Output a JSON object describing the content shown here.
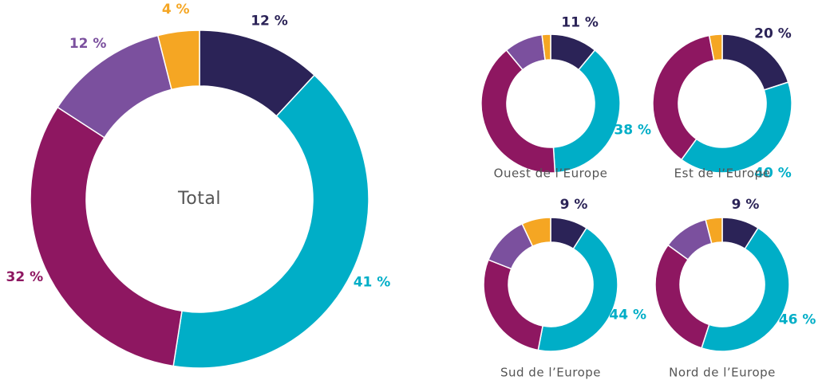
{
  "chart_data": [
    {
      "type": "donut",
      "title": "Total",
      "values": [
        12,
        41,
        32,
        12,
        4
      ],
      "value_labels": [
        "12 %",
        "41 %",
        "32 %",
        "12 %",
        "4 %"
      ],
      "colors": [
        "#2b2357",
        "#00aec7",
        "#8e1761",
        "#7b509e",
        "#f5a623"
      ]
    },
    {
      "type": "donut",
      "title": "Ouest de l’Europe",
      "values": [
        11,
        38,
        40,
        9,
        2
      ],
      "value_labels": [
        "11 %",
        "38 %",
        null,
        null,
        null
      ],
      "colors": [
        "#2b2357",
        "#00aec7",
        "#8e1761",
        "#7b509e",
        "#f5a623"
      ]
    },
    {
      "type": "donut",
      "title": "Est de l’Europe",
      "values": [
        20,
        40,
        37,
        0,
        3
      ],
      "value_labels": [
        "20 %",
        "40 %",
        null,
        null,
        null
      ],
      "colors": [
        "#2b2357",
        "#00aec7",
        "#8e1761",
        "#7b509e",
        "#f5a623"
      ]
    },
    {
      "type": "donut",
      "title": "Sud de l’Europe",
      "values": [
        9,
        44,
        28,
        12,
        7
      ],
      "value_labels": [
        "9 %",
        "44 %",
        null,
        null,
        null
      ],
      "colors": [
        "#2b2357",
        "#00aec7",
        "#8e1761",
        "#7b509e",
        "#f5a623"
      ]
    },
    {
      "type": "donut",
      "title": "Nord de l’Europe",
      "values": [
        9,
        46,
        30,
        11,
        4
      ],
      "value_labels": [
        "9 %",
        "46 %",
        null,
        null,
        null
      ],
      "colors": [
        "#2b2357",
        "#00aec7",
        "#8e1761",
        "#7b509e",
        "#f5a623"
      ]
    }
  ]
}
